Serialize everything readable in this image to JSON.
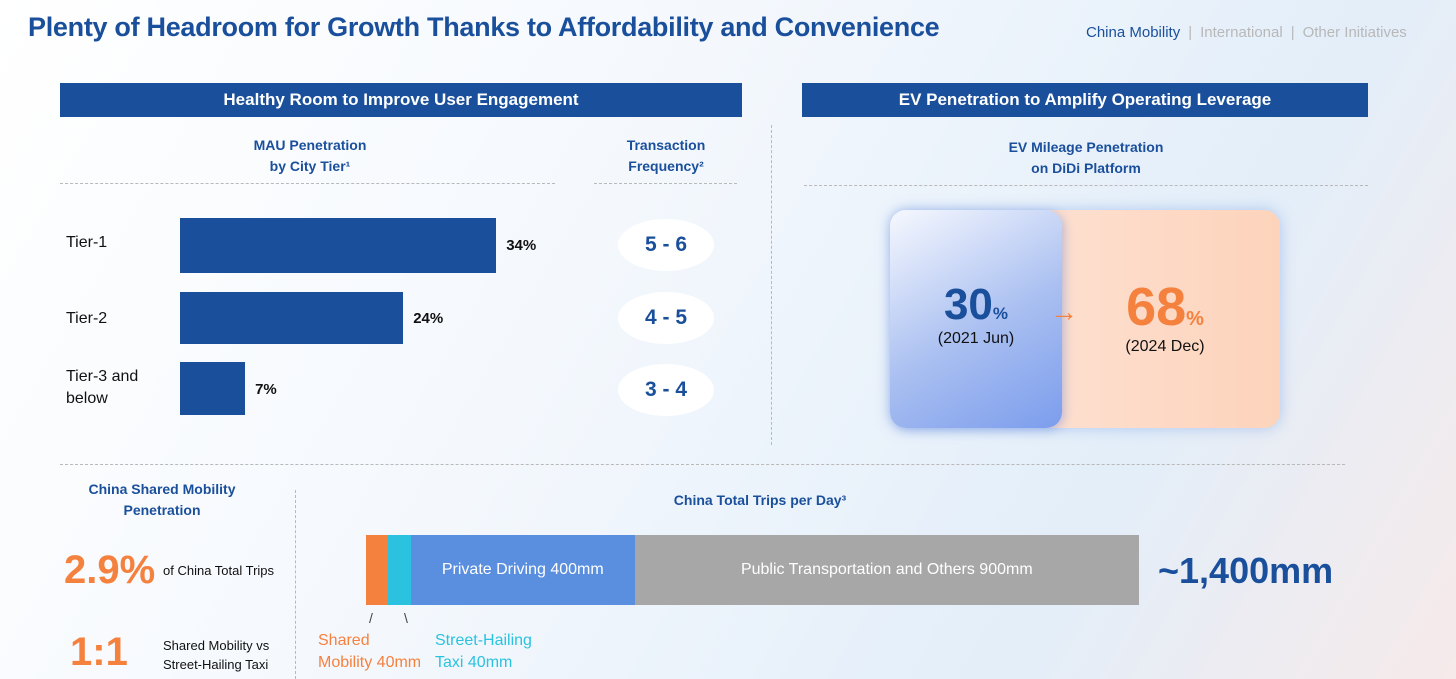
{
  "title": "Plenty of Headroom for Growth Thanks to Affordability and Convenience",
  "nav": {
    "items": [
      "China Mobility",
      "International",
      "Other Initiatives"
    ],
    "separator": "|"
  },
  "left_panel": {
    "header": "Healthy Room to Improve User Engagement",
    "mau_heading": [
      "MAU Penetration",
      "by City Tier¹"
    ],
    "freq_heading": [
      "Transaction",
      "Frequency²"
    ],
    "tiers": [
      {
        "label": "Tier-1",
        "value": 34,
        "value_label": "34%",
        "frequency": "5 - 6"
      },
      {
        "label": "Tier-2",
        "value": 24,
        "value_label": "24%",
        "frequency": "4 - 5"
      },
      {
        "label": "Tier-3 and below",
        "value": 7,
        "value_label": "7%",
        "frequency": "3 - 4"
      }
    ]
  },
  "right_panel": {
    "header": "EV Penetration to Amplify Operating Leverage",
    "heading": [
      "EV Mileage Penetration",
      "on DiDi Platform"
    ],
    "from": {
      "value": "30",
      "unit": "%",
      "date": "(2021 Jun)"
    },
    "arrow": "→",
    "to": {
      "value": "68",
      "unit": "%",
      "date": "(2024 Dec)"
    }
  },
  "bottom": {
    "penetration_heading": [
      "China Shared Mobility",
      "Penetration"
    ],
    "stat1": {
      "value": "2.9%",
      "label": "of China Total Trips"
    },
    "stat2": {
      "value": "1:1",
      "label": [
        "Shared Mobility vs",
        "Street-Hailing Taxi"
      ]
    },
    "trips_heading": "China Total Trips per Day³",
    "total": "~1,400mm",
    "segments": [
      {
        "name": "Shared Mobility",
        "value": 40,
        "label": "",
        "color": "#f5813f"
      },
      {
        "name": "Street-Hailing Taxi",
        "value": 40,
        "label": "",
        "color": "#2bc2e0"
      },
      {
        "name": "Private Driving",
        "value": 400,
        "label": "Private Driving 400mm",
        "color": "#5a8fe0"
      },
      {
        "name": "Public Transportation and Others",
        "value": 900,
        "label": "Public Transportation and Others 900mm",
        "color": "#a7a7a7"
      }
    ],
    "callouts": [
      [
        "Shared",
        "Mobility 40mm"
      ],
      [
        "Street-Hailing",
        "Taxi 40mm"
      ]
    ]
  },
  "colors": {
    "brand": "#1a4f9c",
    "accent": "#f5813f",
    "cyan": "#2bc2e0"
  }
}
